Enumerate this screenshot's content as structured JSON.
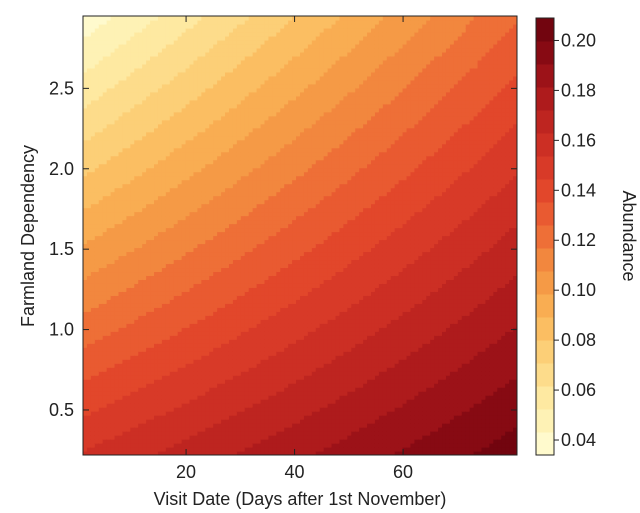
{
  "chart_data": {
    "type": "heatmap",
    "subtype": "filled-contour",
    "xlabel": "Visit Date (Days after 1st November)",
    "ylabel": "Farmland Dependency",
    "colorbar_label": "Abundance",
    "xlim": [
      1,
      81
    ],
    "ylim": [
      0.22,
      2.95
    ],
    "x_ticks": [
      20,
      40,
      60
    ],
    "y_ticks": [
      0.5,
      1.0,
      1.5,
      2.0,
      2.5
    ],
    "x_tick_labels": [
      "20",
      "40",
      "60"
    ],
    "y_tick_labels": [
      "0.5",
      "1.0",
      "1.5",
      "2.0",
      "2.5"
    ],
    "colorbar_range": [
      0.034,
      0.209
    ],
    "colorbar_ticks": [
      0.04,
      0.06,
      0.08,
      0.1,
      0.12,
      0.14,
      0.16,
      0.18,
      0.2
    ],
    "colorbar_tick_labels": [
      "0.04",
      "0.06",
      "0.08",
      "0.10",
      "0.12",
      "0.14",
      "0.16",
      "0.18",
      "0.20"
    ],
    "color_levels": [
      "#fffacd",
      "#fef2b5",
      "#fee9a1",
      "#fddc8b",
      "#fccf77",
      "#fbbe62",
      "#f9ad52",
      "#f59a46",
      "#f2873e",
      "#ee6f37",
      "#e95a31",
      "#e2472b",
      "#d83a28",
      "#cc2f24",
      "#be2520",
      "#ae1b1c",
      "#9c1218",
      "#870a13",
      "#72050f"
    ],
    "corner_values": {
      "low_x_high_y": 0.037,
      "high_x_high_y": 0.125,
      "low_x_low_y": 0.155,
      "high_x_low_y": 0.205
    }
  }
}
